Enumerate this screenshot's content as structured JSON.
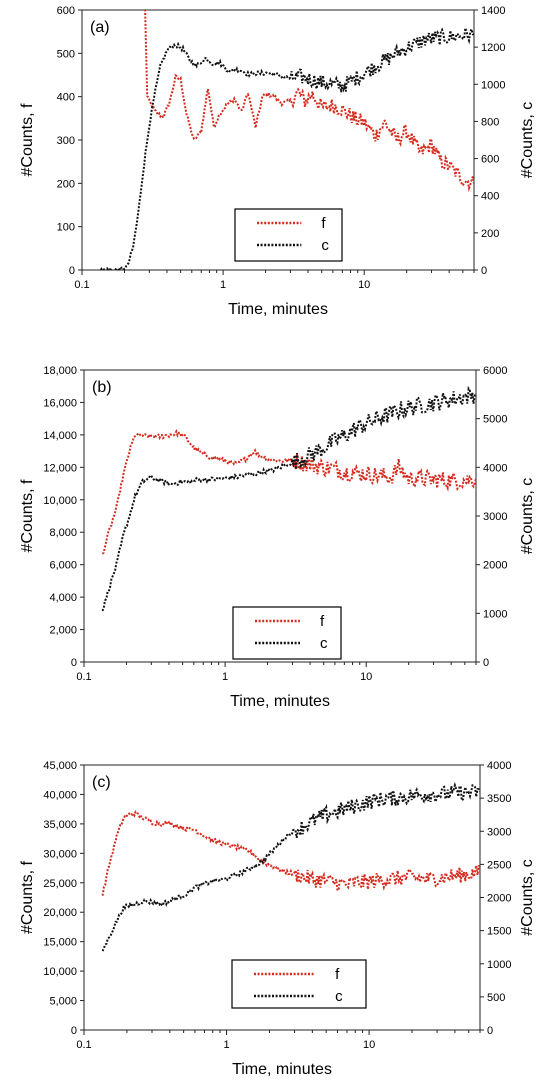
{
  "colors": {
    "f": "#d62b1f",
    "c": "#111111"
  },
  "chart_data": [
    {
      "type": "line",
      "panel_label": "(a)",
      "xscale": "log",
      "xlim": [
        0.1,
        60
      ],
      "xticks": [
        {
          "v": 0.1,
          "label": "0.1"
        },
        {
          "v": 1,
          "label": "1"
        },
        {
          "v": 10,
          "label": "10"
        }
      ],
      "xlabel": "Time, minutes",
      "ylabel_left": "#Counts, f",
      "ylabel_right": "#Counts, c",
      "ylim_left": [
        0,
        600
      ],
      "ylim_right": [
        0,
        1400
      ],
      "yticks_left": [
        {
          "v": 0,
          "label": "0"
        },
        {
          "v": 100,
          "label": "100"
        },
        {
          "v": 200,
          "label": "200"
        },
        {
          "v": 300,
          "label": "300"
        },
        {
          "v": 400,
          "label": "400"
        },
        {
          "v": 500,
          "label": "500"
        },
        {
          "v": 600,
          "label": "600"
        }
      ],
      "yticks_right": [
        {
          "v": 0,
          "label": "0"
        },
        {
          "v": 200,
          "label": "200"
        },
        {
          "v": 400,
          "label": "400"
        },
        {
          "v": 600,
          "label": "600"
        },
        {
          "v": 800,
          "label": "800"
        },
        {
          "v": 1000,
          "label": "1000"
        },
        {
          "v": 1200,
          "label": "1200"
        },
        {
          "v": 1400,
          "label": "1400"
        }
      ],
      "legend": "center",
      "series": [
        {
          "name": "f",
          "axis": "left",
          "x": [
            0.28,
            0.29,
            0.31,
            0.34,
            0.38,
            0.42,
            0.46,
            0.5,
            0.55,
            0.62,
            0.7,
            0.78,
            0.86,
            0.95,
            1.05,
            1.2,
            1.35,
            1.5,
            1.7,
            1.9,
            2.1,
            2.3,
            2.6,
            3.0,
            3.4,
            3.8,
            4.3,
            5.0,
            6.0,
            7.0,
            8.5,
            10,
            12,
            14,
            17,
            20,
            25,
            30,
            35,
            40,
            50,
            60
          ],
          "y": [
            600,
            400,
            380,
            360,
            355,
            390,
            445,
            440,
            360,
            300,
            320,
            420,
            330,
            360,
            380,
            395,
            365,
            410,
            330,
            400,
            405,
            400,
            385,
            390,
            410,
            390,
            405,
            375,
            380,
            370,
            350,
            340,
            310,
            340,
            300,
            320,
            270,
            290,
            250,
            240,
            210,
            200
          ]
        },
        {
          "name": "c",
          "axis": "right",
          "x": [
            0.13,
            0.16,
            0.19,
            0.21,
            0.23,
            0.25,
            0.27,
            0.3,
            0.33,
            0.36,
            0.4,
            0.44,
            0.48,
            0.52,
            0.58,
            0.65,
            0.75,
            0.85,
            0.95,
            1.1,
            1.3,
            1.5,
            1.8,
            2.1,
            2.5,
            3.0,
            3.5,
            4.0,
            5.0,
            6.0,
            7.0,
            8.0,
            10,
            12,
            15,
            18,
            22,
            27,
            33,
            40,
            50,
            60
          ],
          "y": [
            0,
            0,
            5,
            20,
            120,
            300,
            520,
            780,
            960,
            1100,
            1180,
            1210,
            1205,
            1190,
            1130,
            1100,
            1140,
            1110,
            1115,
            1070,
            1080,
            1055,
            1060,
            1060,
            1050,
            1030,
            1040,
            1030,
            1010,
            1000,
            990,
            1015,
            1060,
            1100,
            1140,
            1180,
            1210,
            1240,
            1250,
            1255,
            1265,
            1270
          ]
        }
      ]
    },
    {
      "type": "line",
      "panel_label": "(b)",
      "xscale": "log",
      "xlim": [
        0.1,
        60
      ],
      "xticks": [
        {
          "v": 0.1,
          "label": "0.1"
        },
        {
          "v": 1,
          "label": "1"
        },
        {
          "v": 10,
          "label": "10"
        }
      ],
      "xlabel": "Time, minutes",
      "ylabel_left": "#Counts, f",
      "ylabel_right": "#Counts, c",
      "ylim_left": [
        0,
        18000
      ],
      "ylim_right": [
        0,
        6000
      ],
      "yticks_left": [
        {
          "v": 0,
          "label": "0"
        },
        {
          "v": 2000,
          "label": "2,000"
        },
        {
          "v": 4000,
          "label": "4,000"
        },
        {
          "v": 6000,
          "label": "6,000"
        },
        {
          "v": 8000,
          "label": "8,000"
        },
        {
          "v": 10000,
          "label": "10,000"
        },
        {
          "v": 12000,
          "label": "12,000"
        },
        {
          "v": 14000,
          "label": "14,000"
        },
        {
          "v": 16000,
          "label": "16,000"
        },
        {
          "v": 18000,
          "label": "18,000"
        }
      ],
      "yticks_right": [
        {
          "v": 0,
          "label": "0"
        },
        {
          "v": 1000,
          "label": "1000"
        },
        {
          "v": 2000,
          "label": "2000"
        },
        {
          "v": 3000,
          "label": "3000"
        },
        {
          "v": 4000,
          "label": "4000"
        },
        {
          "v": 5000,
          "label": "5000"
        },
        {
          "v": 6000,
          "label": "6000"
        }
      ],
      "legend": "bottom-center",
      "series": [
        {
          "name": "f",
          "axis": "left",
          "x": [
            0.135,
            0.15,
            0.17,
            0.19,
            0.21,
            0.23,
            0.26,
            0.3,
            0.35,
            0.4,
            0.46,
            0.52,
            0.6,
            0.7,
            0.8,
            1.0,
            1.2,
            1.4,
            1.6,
            1.8,
            2.0,
            2.5,
            3.0,
            3.5,
            4.0,
            5.0,
            6.0,
            7.0,
            8.5,
            10,
            12,
            15,
            17,
            20,
            25,
            30,
            40,
            50,
            60
          ],
          "y": [
            6600,
            8000,
            9500,
            11500,
            13000,
            14000,
            13950,
            13900,
            13900,
            14000,
            14100,
            13900,
            13200,
            12800,
            12600,
            12400,
            12200,
            12500,
            13000,
            12700,
            12500,
            12400,
            12450,
            12300,
            12200,
            12000,
            11900,
            11700,
            11650,
            11600,
            11500,
            11400,
            12000,
            11300,
            11300,
            11250,
            11200,
            11200,
            11300
          ]
        },
        {
          "name": "c",
          "axis": "right",
          "x": [
            0.135,
            0.15,
            0.17,
            0.19,
            0.21,
            0.23,
            0.26,
            0.3,
            0.33,
            0.37,
            0.42,
            0.48,
            0.55,
            0.65,
            0.8,
            1.0,
            1.2,
            1.5,
            1.8,
            2.2,
            2.7,
            3.3,
            4.0,
            5.0,
            6.0,
            7.0,
            8.5,
            10,
            12,
            15,
            18,
            22,
            27,
            33,
            40,
            50,
            60
          ],
          "y": [
            1050,
            1500,
            2000,
            2600,
            3000,
            3400,
            3700,
            3800,
            3750,
            3700,
            3650,
            3700,
            3700,
            3750,
            3750,
            3780,
            3800,
            3850,
            3900,
            3950,
            4050,
            4150,
            4250,
            4400,
            4550,
            4650,
            4800,
            4900,
            5000,
            5100,
            5200,
            5250,
            5300,
            5350,
            5400,
            5450,
            5500
          ]
        }
      ]
    },
    {
      "type": "line",
      "panel_label": "(c)",
      "xscale": "log",
      "xlim": [
        0.1,
        60
      ],
      "xticks": [
        {
          "v": 0.1,
          "label": "0.1"
        },
        {
          "v": 1,
          "label": "1"
        },
        {
          "v": 10,
          "label": "10"
        }
      ],
      "xlabel": "Time, minutes",
      "ylabel_left": "#Counts, f",
      "ylabel_right": "#Counts, c",
      "ylim_left": [
        0,
        45000
      ],
      "ylim_right": [
        0,
        4000
      ],
      "yticks_left": [
        {
          "v": 0,
          "label": "0"
        },
        {
          "v": 5000,
          "label": "5,000"
        },
        {
          "v": 10000,
          "label": "10,000"
        },
        {
          "v": 15000,
          "label": "15,000"
        },
        {
          "v": 20000,
          "label": "20,000"
        },
        {
          "v": 25000,
          "label": "25,000"
        },
        {
          "v": 30000,
          "label": "30,000"
        },
        {
          "v": 35000,
          "label": "35,000"
        },
        {
          "v": 40000,
          "label": "40,000"
        },
        {
          "v": 45000,
          "label": "45,000"
        }
      ],
      "yticks_right": [
        {
          "v": 0,
          "label": "0"
        },
        {
          "v": 500,
          "label": "500"
        },
        {
          "v": 1000,
          "label": "1000"
        },
        {
          "v": 1500,
          "label": "1500"
        },
        {
          "v": 2000,
          "label": "2000"
        },
        {
          "v": 2500,
          "label": "2500"
        },
        {
          "v": 3000,
          "label": "3000"
        },
        {
          "v": 3500,
          "label": "3500"
        },
        {
          "v": 4000,
          "label": "4000"
        }
      ],
      "legend": "bottom-center",
      "series": [
        {
          "name": "f",
          "axis": "left",
          "x": [
            0.135,
            0.15,
            0.17,
            0.19,
            0.21,
            0.23,
            0.26,
            0.3,
            0.35,
            0.4,
            0.46,
            0.52,
            0.6,
            0.7,
            0.8,
            1.0,
            1.2,
            1.4,
            1.6,
            1.8,
            2.0,
            2.5,
            3.0,
            3.5,
            4.0,
            5.0,
            6.0,
            7.0,
            8.0,
            10,
            12,
            15,
            20,
            25,
            30,
            40,
            50,
            60
          ],
          "y": [
            23000,
            28000,
            33000,
            36000,
            36700,
            36800,
            36000,
            35200,
            35000,
            35200,
            34500,
            34200,
            34000,
            33000,
            32200,
            31500,
            31000,
            30500,
            29500,
            28500,
            28000,
            27000,
            26500,
            26000,
            25600,
            25300,
            25000,
            24600,
            25000,
            25200,
            25500,
            25700,
            26000,
            25600,
            25800,
            26200,
            26500,
            26800
          ]
        },
        {
          "name": "c",
          "axis": "right",
          "x": [
            0.135,
            0.15,
            0.17,
            0.19,
            0.21,
            0.23,
            0.26,
            0.3,
            0.35,
            0.4,
            0.46,
            0.52,
            0.6,
            0.7,
            0.8,
            1.0,
            1.2,
            1.5,
            1.8,
            2.2,
            2.7,
            3.3,
            4.0,
            5.0,
            6.0,
            7.0,
            8.5,
            10,
            12,
            15,
            18,
            22,
            27,
            33,
            40,
            50,
            60
          ],
          "y": [
            1200,
            1400,
            1650,
            1850,
            1880,
            1900,
            1950,
            1930,
            1900,
            1950,
            2000,
            2050,
            2150,
            2200,
            2250,
            2280,
            2350,
            2450,
            2550,
            2750,
            2950,
            3050,
            3150,
            3250,
            3300,
            3350,
            3400,
            3450,
            3480,
            3500,
            3520,
            3550,
            3560,
            3560,
            3580,
            3580,
            3600
          ]
        }
      ]
    }
  ]
}
